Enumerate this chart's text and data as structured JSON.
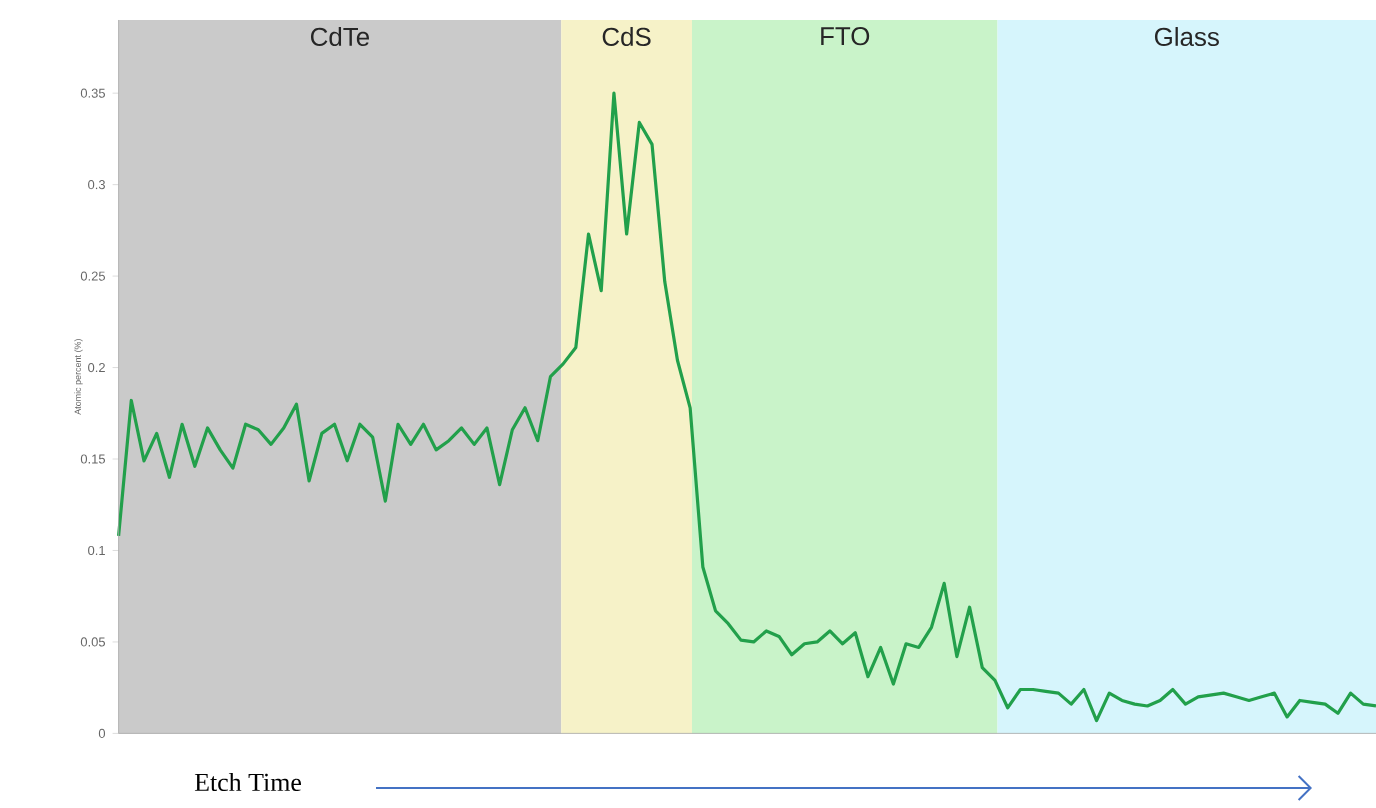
{
  "chart_data": {
    "type": "line",
    "xlabel": "Etch Time",
    "ylabel": "Atomic percent (%)",
    "categories": [
      null,
      null,
      null,
      null,
      null,
      null,
      null,
      null,
      null,
      null,
      null,
      null,
      null,
      null,
      null,
      null,
      null,
      null,
      null,
      null,
      null,
      null,
      null,
      null,
      null,
      null,
      null,
      null,
      null,
      null,
      null,
      null,
      null,
      null,
      null,
      null,
      null,
      null,
      null,
      null,
      null,
      null,
      null,
      null,
      null,
      null,
      null,
      null,
      null,
      null,
      null,
      null,
      null,
      null,
      null,
      null,
      null,
      null,
      null,
      null,
      null,
      null,
      null,
      null,
      null,
      null,
      null,
      null,
      null,
      null,
      null,
      null,
      null,
      null,
      null,
      null,
      null,
      null,
      null,
      null,
      null,
      null,
      null,
      null,
      null,
      null,
      null,
      null,
      null,
      null,
      null,
      null,
      null,
      null,
      null,
      null,
      null,
      null,
      null,
      null
    ],
    "series": [
      {
        "color": "#22a04b",
        "values": [
          0.108,
          0.182,
          0.149,
          0.164,
          0.14,
          0.169,
          0.146,
          0.167,
          0.155,
          0.145,
          0.169,
          0.166,
          0.158,
          0.167,
          0.18,
          0.138,
          0.164,
          0.169,
          0.149,
          0.169,
          0.162,
          0.127,
          0.169,
          0.158,
          0.169,
          0.155,
          0.16,
          0.167,
          0.158,
          0.167,
          0.136,
          0.166,
          0.178,
          0.16,
          0.195,
          0.202,
          0.211,
          0.273,
          0.242,
          0.35,
          0.273,
          0.334,
          0.322,
          0.247,
          0.204,
          0.178,
          0.091,
          0.067,
          0.06,
          0.051,
          0.05,
          0.056,
          0.053,
          0.043,
          0.049,
          0.05,
          0.056,
          0.049,
          0.055,
          0.031,
          0.047,
          0.027,
          0.049,
          0.047,
          0.058,
          0.082,
          0.042,
          0.069,
          0.036,
          0.029,
          0.014,
          0.024,
          0.024,
          0.023,
          0.022,
          0.016,
          0.024,
          0.007,
          0.022,
          0.018,
          0.016,
          0.015,
          0.018,
          0.024,
          0.016,
          0.02,
          0.021,
          0.022,
          0.02,
          0.018,
          0.02,
          0.022,
          0.009,
          0.018,
          0.017,
          0.016,
          0.011,
          0.022,
          0.016,
          0.015
        ]
      }
    ],
    "ylim": [
      0,
      0.39
    ],
    "yticks": [
      0,
      0.05,
      0.1,
      0.15,
      0.2,
      0.25,
      0.3,
      0.35
    ],
    "tick_labels": "y",
    "annotations": [
      "CdTe",
      "CdS",
      "FTO",
      "Glass"
    ]
  }
}
